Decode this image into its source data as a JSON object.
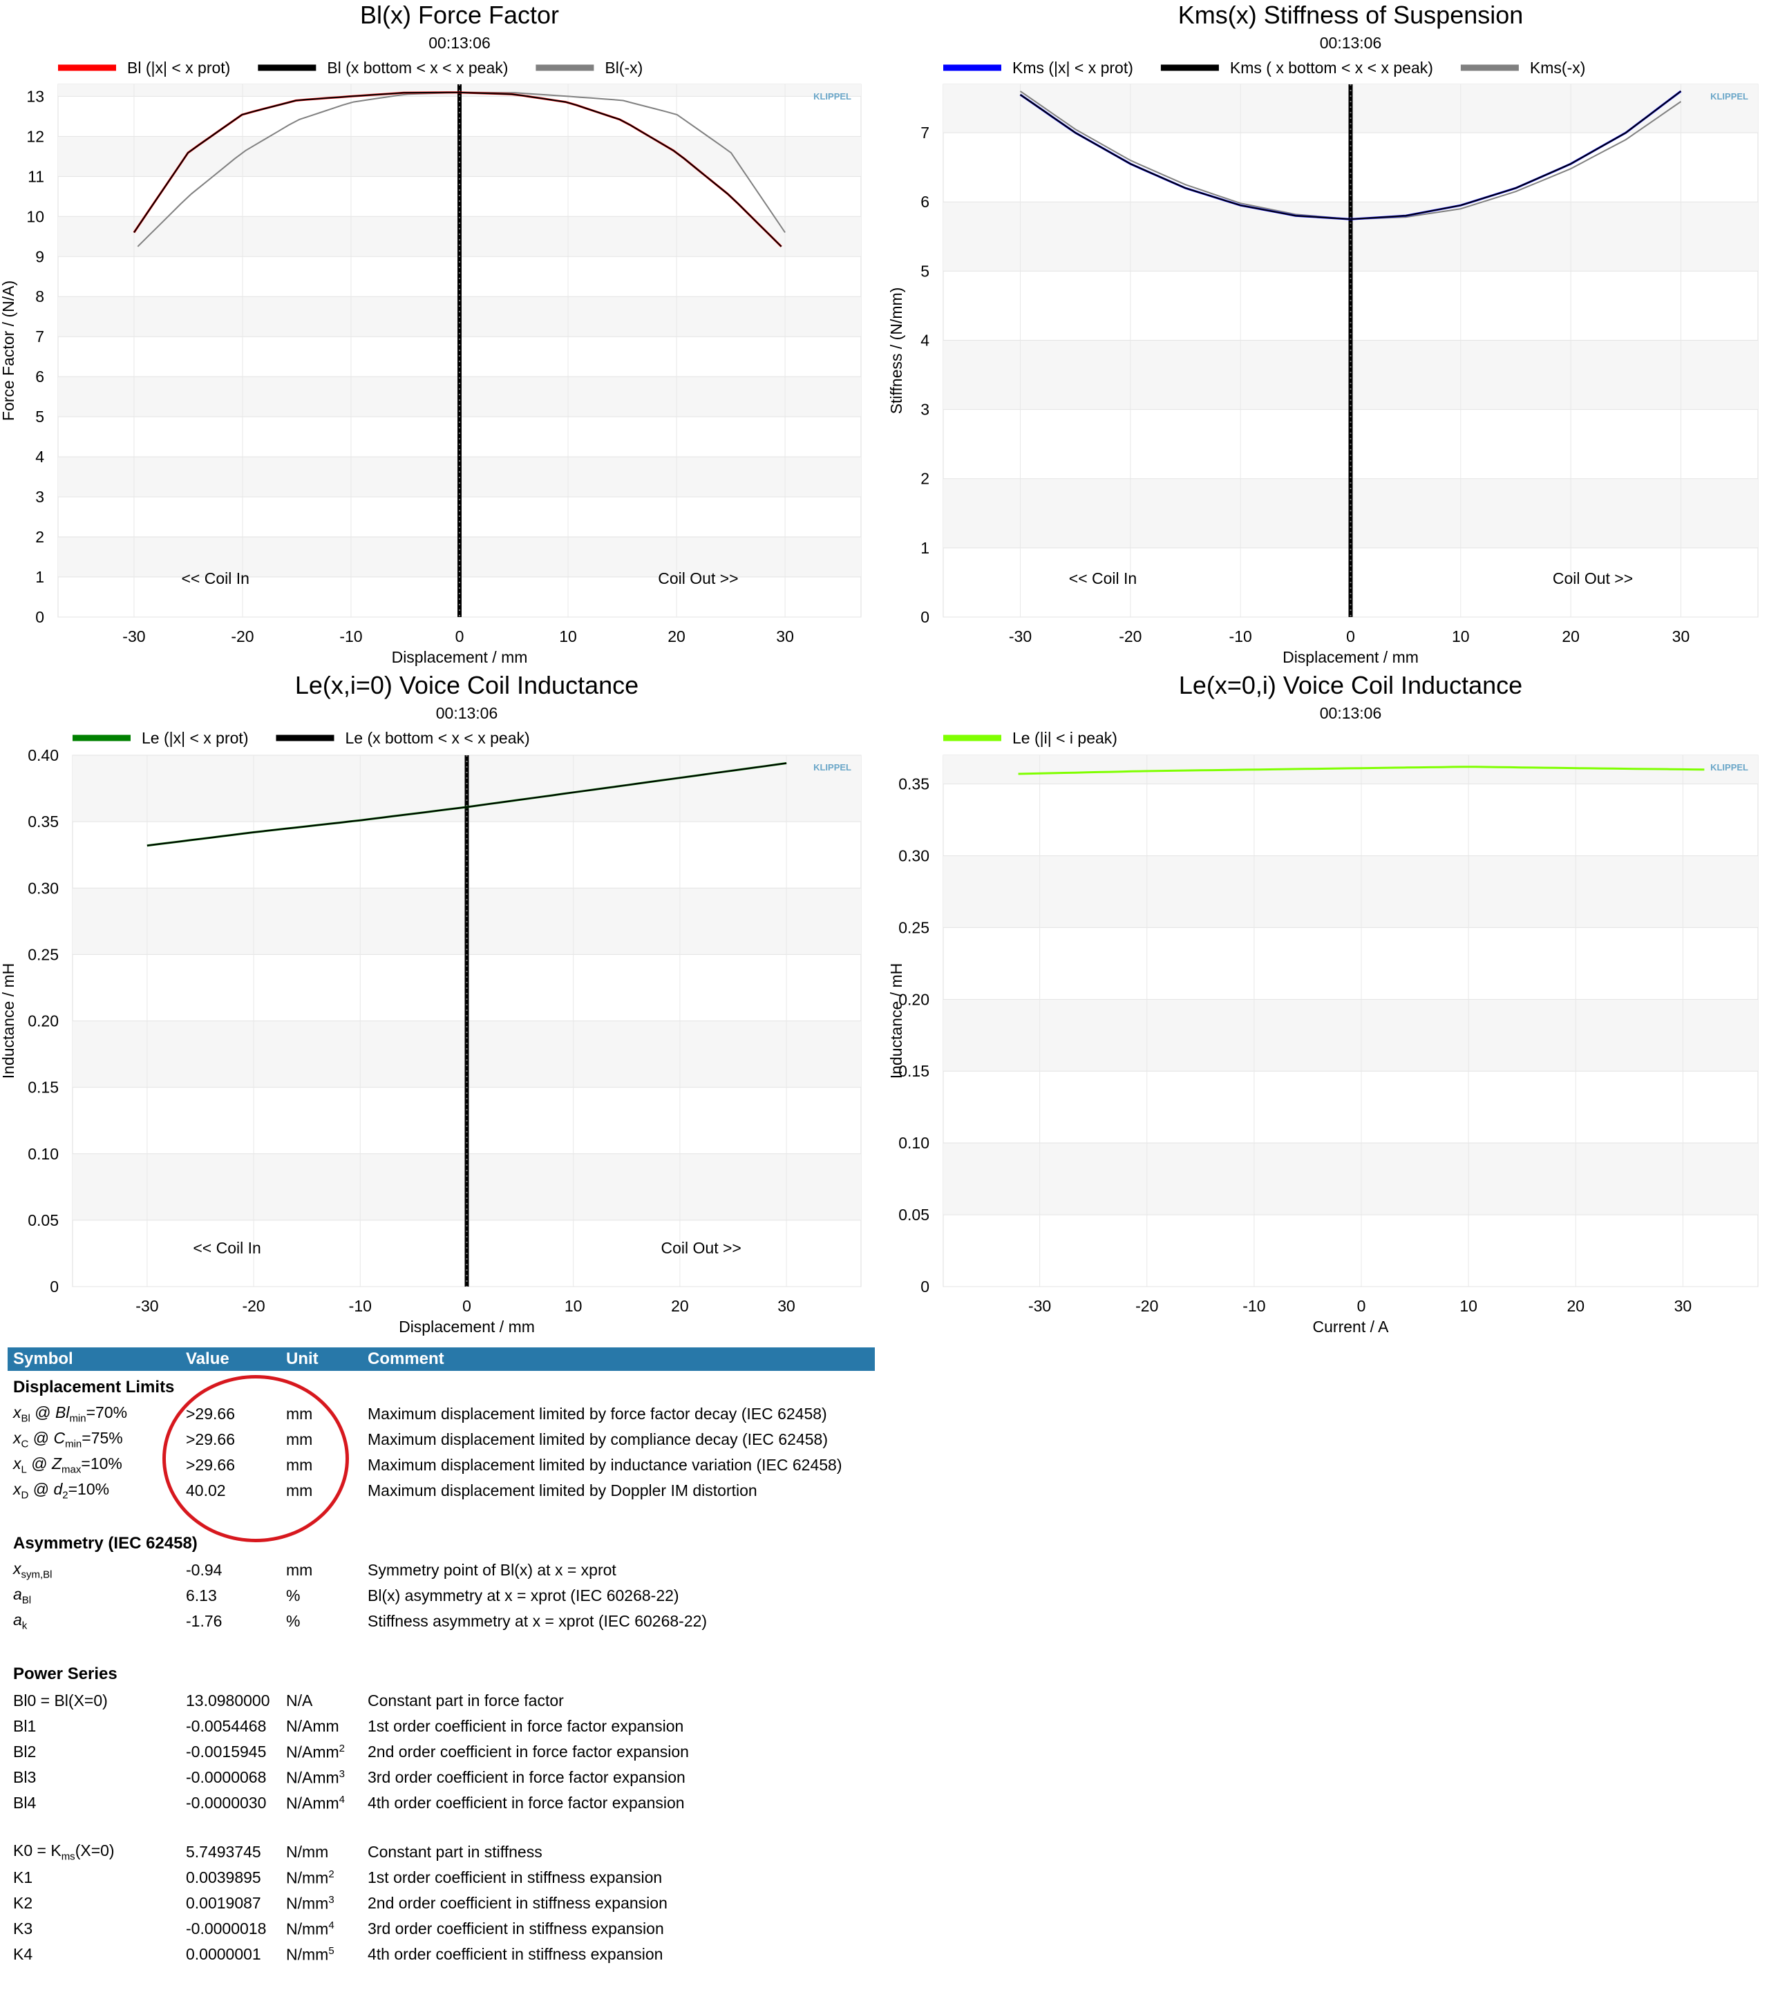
{
  "charts": [
    {
      "id": "bl",
      "title": "Bl(x) Force Factor",
      "subtitle": "00:13:06",
      "xlabel": "Displacement / mm",
      "ylabel": "Force Factor / (N/A)",
      "logo": "KLIPPEL",
      "annotations": [
        "<< Coil In",
        "Coil Out >>"
      ],
      "legend": [
        {
          "label": "Bl (|x| < x prot)",
          "color": "#ff0000"
        },
        {
          "label": "Bl (x bottom < x < x peak)",
          "color": "#000000"
        },
        {
          "label": "Bl(-x)",
          "color": "#808080"
        }
      ],
      "xticks": [
        "-30",
        "-20",
        "-10",
        "0",
        "10",
        "20",
        "30"
      ],
      "yticks": [
        "0",
        "1",
        "2",
        "3",
        "4",
        "5",
        "6",
        "7",
        "8",
        "9",
        "10",
        "11",
        "12",
        "13"
      ]
    },
    {
      "id": "kms",
      "title": "Kms(x) Stiffness of Suspension",
      "subtitle": "00:13:06",
      "xlabel": "Displacement / mm",
      "ylabel": "Stiffness / (N/mm)",
      "logo": "KLIPPEL",
      "annotations": [
        "<< Coil In",
        "Coil Out >>"
      ],
      "legend": [
        {
          "label": "Kms (|x| < x prot)",
          "color": "#0000ff"
        },
        {
          "label": "Kms ( x bottom < x < x peak)",
          "color": "#000000"
        },
        {
          "label": "Kms(-x)",
          "color": "#808080"
        }
      ],
      "xticks": [
        "-30",
        "-20",
        "-10",
        "0",
        "10",
        "20",
        "30"
      ],
      "yticks": [
        "0",
        "1",
        "2",
        "3",
        "4",
        "5",
        "6",
        "7"
      ]
    },
    {
      "id": "le_x",
      "title": "Le(x,i=0) Voice Coil Inductance",
      "subtitle": "00:13:06",
      "xlabel": "Displacement / mm",
      "ylabel": "Inductance / mH",
      "logo": "KLIPPEL",
      "annotations": [
        "<< Coil In",
        "Coil Out >>"
      ],
      "legend": [
        {
          "label": "Le (|x| < x prot)",
          "color": "#008000"
        },
        {
          "label": "Le (x bottom < x < x peak)",
          "color": "#000000"
        }
      ],
      "xticks": [
        "-30",
        "-20",
        "-10",
        "0",
        "10",
        "20",
        "30"
      ],
      "yticks": [
        "0",
        "0.05",
        "0.10",
        "0.15",
        "0.20",
        "0.25",
        "0.30",
        "0.35",
        "0.40"
      ]
    },
    {
      "id": "le_i",
      "title": "Le(x=0,i) Voice Coil Inductance",
      "subtitle": "00:13:06",
      "xlabel": "Current / A",
      "ylabel": "Inductance / mH",
      "logo": "KLIPPEL",
      "annotations": [],
      "legend": [
        {
          "label": "Le (|i| < i peak)",
          "color": "#7fff00"
        }
      ],
      "xticks": [
        "-30",
        "-20",
        "-10",
        "0",
        "10",
        "20",
        "30"
      ],
      "yticks": [
        "0",
        "0.05",
        "0.10",
        "0.15",
        "0.20",
        "0.25",
        "0.30",
        "0.35"
      ]
    }
  ],
  "chart_data": [
    {
      "type": "line",
      "title": "Bl(x) Force Factor",
      "xlabel": "Displacement / mm",
      "ylabel": "Force Factor / (N/A)",
      "xlim": [
        -37,
        37
      ],
      "ylim": [
        0,
        13.3
      ],
      "grid": true,
      "legend_position": "top",
      "series": [
        {
          "name": "Bl (|x| < x prot)",
          "color": "#ff0000",
          "x": [
            -30,
            -25,
            -20,
            -15,
            -10,
            -5,
            0,
            5,
            10,
            15,
            20,
            25,
            29.66
          ],
          "y": [
            9.6,
            11.6,
            12.55,
            12.9,
            13.0,
            13.09,
            13.098,
            13.05,
            12.85,
            12.4,
            11.6,
            10.5,
            9.25
          ]
        },
        {
          "name": "Bl (x bottom < x < x peak)",
          "color": "#000000",
          "x": [
            -30,
            -25,
            -20,
            -15,
            -10,
            -5,
            0,
            5,
            10,
            15,
            20,
            25,
            29.66
          ],
          "y": [
            9.6,
            11.6,
            12.55,
            12.9,
            13.0,
            13.09,
            13.098,
            13.05,
            12.85,
            12.4,
            11.6,
            10.5,
            9.25
          ]
        },
        {
          "name": "Bl(-x)",
          "color": "#808080",
          "x": [
            -29.66,
            -25,
            -20,
            -15,
            -10,
            -5,
            0,
            5,
            10,
            15,
            20,
            25,
            30
          ],
          "y": [
            9.25,
            10.5,
            11.6,
            12.4,
            12.85,
            13.05,
            13.098,
            13.09,
            13.0,
            12.9,
            12.55,
            11.6,
            9.6
          ]
        }
      ],
      "vertical_line_x": 0
    },
    {
      "type": "line",
      "title": "Kms(x) Stiffness of Suspension",
      "xlabel": "Displacement / mm",
      "ylabel": "Stiffness / (N/mm)",
      "xlim": [
        -37,
        37
      ],
      "ylim": [
        0,
        7.7
      ],
      "grid": true,
      "legend_position": "top",
      "series": [
        {
          "name": "Kms (|x| < x prot)",
          "color": "#0000ff",
          "x": [
            -30,
            -25,
            -20,
            -15,
            -10,
            -5,
            0,
            5,
            10,
            15,
            20,
            25,
            30
          ],
          "y": [
            7.55,
            7.0,
            6.55,
            6.2,
            5.95,
            5.8,
            5.75,
            5.8,
            5.95,
            6.2,
            6.55,
            7.0,
            7.6
          ]
        },
        {
          "name": "Kms ( x bottom < x < x peak)",
          "color": "#000000",
          "x": [
            -30,
            -25,
            -20,
            -15,
            -10,
            -5,
            0,
            5,
            10,
            15,
            20,
            25,
            30
          ],
          "y": [
            7.55,
            7.0,
            6.55,
            6.2,
            5.95,
            5.8,
            5.75,
            5.8,
            5.95,
            6.2,
            6.55,
            7.0,
            7.6
          ]
        },
        {
          "name": "Kms(-x)",
          "color": "#808080",
          "x": [
            -30,
            -25,
            -20,
            -15,
            -10,
            -5,
            0,
            5,
            10,
            15,
            20,
            25,
            30
          ],
          "y": [
            7.6,
            7.05,
            6.6,
            6.25,
            5.98,
            5.82,
            5.75,
            5.78,
            5.9,
            6.15,
            6.48,
            6.9,
            7.45
          ]
        }
      ],
      "vertical_line_x": 0
    },
    {
      "type": "line",
      "title": "Le(x,i=0) Voice Coil Inductance",
      "xlabel": "Displacement / mm",
      "ylabel": "Inductance / mH",
      "xlim": [
        -37,
        37
      ],
      "ylim": [
        0,
        0.4
      ],
      "grid": true,
      "legend_position": "top",
      "series": [
        {
          "name": "Le (|x| < x prot)",
          "color": "#008000",
          "x": [
            -30,
            -20,
            -10,
            0,
            10,
            20,
            30
          ],
          "y": [
            0.332,
            0.342,
            0.351,
            0.361,
            0.372,
            0.383,
            0.394
          ]
        },
        {
          "name": "Le (x bottom < x < x peak)",
          "color": "#000000",
          "x": [
            -30,
            -20,
            -10,
            0,
            10,
            20,
            30
          ],
          "y": [
            0.332,
            0.342,
            0.351,
            0.361,
            0.372,
            0.383,
            0.394
          ]
        }
      ],
      "vertical_line_x": 0
    },
    {
      "type": "line",
      "title": "Le(x=0,i) Voice Coil Inductance",
      "xlabel": "Current / A",
      "ylabel": "Inductance / mH",
      "xlim": [
        -39,
        37
      ],
      "ylim": [
        0,
        0.37
      ],
      "grid": true,
      "legend_position": "top",
      "series": [
        {
          "name": "Le (|i| < i peak)",
          "color": "#7fff00",
          "x": [
            -32,
            -20,
            -10,
            0,
            10,
            20,
            32
          ],
          "y": [
            0.357,
            0.359,
            0.36,
            0.361,
            0.362,
            0.361,
            0.36
          ]
        }
      ]
    }
  ],
  "table": {
    "headers": [
      "Symbol",
      "Value",
      "Unit",
      "Comment"
    ],
    "sections": [
      {
        "title": "Displacement Limits",
        "rows": [
          {
            "sym": "x",
            "sym_sub": "Bl",
            "sym_rest": " @ ",
            "sym2": "Bl",
            "sym2_sub": "min",
            "sym2_rest": "=70%",
            "value": ">29.66",
            "unit": "mm",
            "unit_sup": "",
            "comment": "Maximum displacement limited by force factor decay (IEC 62458)"
          },
          {
            "sym": "x",
            "sym_sub": "C",
            "sym_rest": " @ ",
            "sym2": "C",
            "sym2_sub": "min",
            "sym2_rest": "=75%",
            "value": ">29.66",
            "unit": "mm",
            "unit_sup": "",
            "comment": "Maximum displacement limited by compliance decay (IEC 62458)"
          },
          {
            "sym": "x",
            "sym_sub": "L",
            "sym_rest": " @ ",
            "sym2": "Z",
            "sym2_sub": "max",
            "sym2_rest": "=10%",
            "value": ">29.66",
            "unit": "mm",
            "unit_sup": "",
            "comment": "Maximum displacement limited by inductance variation (IEC 62458)"
          },
          {
            "sym": "x",
            "sym_sub": "D",
            "sym_rest": " @ ",
            "sym2": "d",
            "sym2_sub": "2",
            "sym2_rest": "=10%",
            "value": "40.02",
            "unit": "mm",
            "unit_sup": "",
            "comment": "Maximum displacement limited by Doppler IM distortion"
          }
        ]
      },
      {
        "title": "Asymmetry (IEC 62458)",
        "rows": [
          {
            "sym": "x",
            "sym_sub": "sym,Bl",
            "sym_rest": "",
            "sym2": "",
            "sym2_sub": "",
            "sym2_rest": "",
            "value": "-0.94",
            "unit": "mm",
            "unit_sup": "",
            "comment": "Symmetry point of Bl(x) at x = xprot"
          },
          {
            "sym": "a",
            "sym_sub": "Bl",
            "sym_rest": "",
            "sym2": "",
            "sym2_sub": "",
            "sym2_rest": "",
            "value": "6.13",
            "unit": "%",
            "unit_sup": "",
            "comment": "Bl(x) asymmetry at x = xprot (IEC 60268-22)"
          },
          {
            "sym": "a",
            "sym_sub": "k",
            "sym_rest": "",
            "sym2": "",
            "sym2_sub": "",
            "sym2_rest": "",
            "value": "-1.76",
            "unit": "%",
            "unit_sup": "",
            "comment": "Stiffness asymmetry at x = xprot (IEC 60268-22)"
          }
        ]
      },
      {
        "title": "Power Series",
        "rows": [
          {
            "sym": "Bl0 = Bl(X=0)",
            "value": "13.0980000",
            "unit": "N/A",
            "unit_sup": "",
            "comment": "Constant part in force factor"
          },
          {
            "sym": "Bl1",
            "value": "-0.0054468",
            "unit": "N/Amm",
            "unit_sup": "",
            "comment": "1st order coefficient in force factor expansion"
          },
          {
            "sym": "Bl2",
            "value": "-0.0015945",
            "unit": "N/Amm",
            "unit_sup": "2",
            "comment": "2nd order coefficient in force factor expansion"
          },
          {
            "sym": "Bl3",
            "value": "-0.0000068",
            "unit": "N/Amm",
            "unit_sup": "3",
            "comment": "3rd order coefficient in force factor expansion"
          },
          {
            "sym": "Bl4",
            "value": "-0.0000030",
            "unit": "N/Amm",
            "unit_sup": "4",
            "comment": "4th order coefficient in force factor expansion"
          }
        ]
      },
      {
        "title": "",
        "rows": [
          {
            "sym": "K0 = K",
            "sym_sub": "ms",
            "sym_rest": "(X=0)",
            "value": "5.7493745",
            "unit": "N/mm",
            "unit_sup": "",
            "comment": "Constant part in stiffness"
          },
          {
            "sym": "K1",
            "value": "0.0039895",
            "unit": "N/mm",
            "unit_sup": "2",
            "comment": "1st order coefficient in stiffness expansion"
          },
          {
            "sym": "K2",
            "value": "0.0019087",
            "unit": "N/mm",
            "unit_sup": "3",
            "comment": "2nd order coefficient in stiffness expansion"
          },
          {
            "sym": "K3",
            "value": "-0.0000018",
            "unit": "N/mm",
            "unit_sup": "4",
            "comment": "3rd order coefficient in stiffness expansion"
          },
          {
            "sym": "K4",
            "value": "0.0000001",
            "unit": "N/mm",
            "unit_sup": "5",
            "comment": "4th order coefficient in stiffness expansion"
          }
        ]
      }
    ]
  }
}
